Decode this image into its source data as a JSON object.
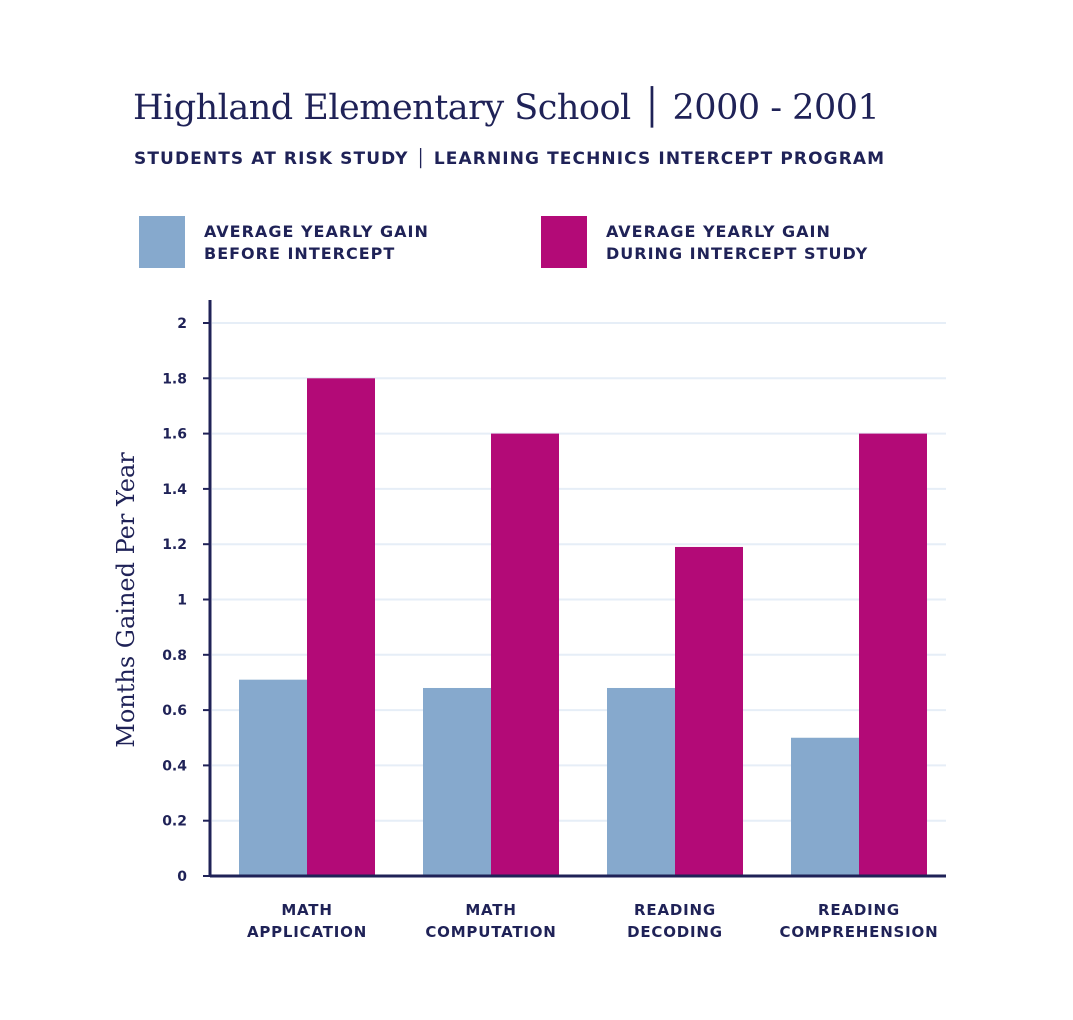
{
  "chart_data": {
    "type": "bar",
    "title": "Highland Elementary School │ 2000 - 2001",
    "subtitle": "STUDENTS AT RISK STUDY │ LEARNING TECHNICS INTERCEPT PROGRAM",
    "ylabel": "Months Gained Per Year",
    "xlabel": "",
    "ylim": [
      0,
      2
    ],
    "yticks": [
      "0",
      "0.2",
      "0.4",
      "0.6",
      "0.8",
      "1",
      "1.2",
      "1.4",
      "1.6",
      "1.8",
      "2"
    ],
    "grid": true,
    "legend_position": "top",
    "categories": [
      [
        "MATH",
        "APPLICATION"
      ],
      [
        "MATH",
        "COMPUTATION"
      ],
      [
        "READING",
        "DECODING"
      ],
      [
        "READING",
        "COMPREHENSION"
      ]
    ],
    "series": [
      {
        "name": "AVERAGE YEARLY GAIN BEFORE INTERCEPT",
        "legend_lines": [
          "AVERAGE YEARLY GAIN",
          "BEFORE INTERCEPT"
        ],
        "color": "#86a9cd",
        "values": [
          0.71,
          0.68,
          0.68,
          0.5
        ]
      },
      {
        "name": "AVERAGE YEARLY GAIN DURING INTERCEPT STUDY",
        "legend_lines": [
          "AVERAGE YEARLY GAIN",
          "DURING INTERCEPT STUDY"
        ],
        "color": "#b30a77",
        "values": [
          1.8,
          1.6,
          1.19,
          1.6
        ]
      }
    ]
  },
  "colors": {
    "text": "#1f2257",
    "axis": "#1f2257",
    "grid": "#e6eef7"
  }
}
